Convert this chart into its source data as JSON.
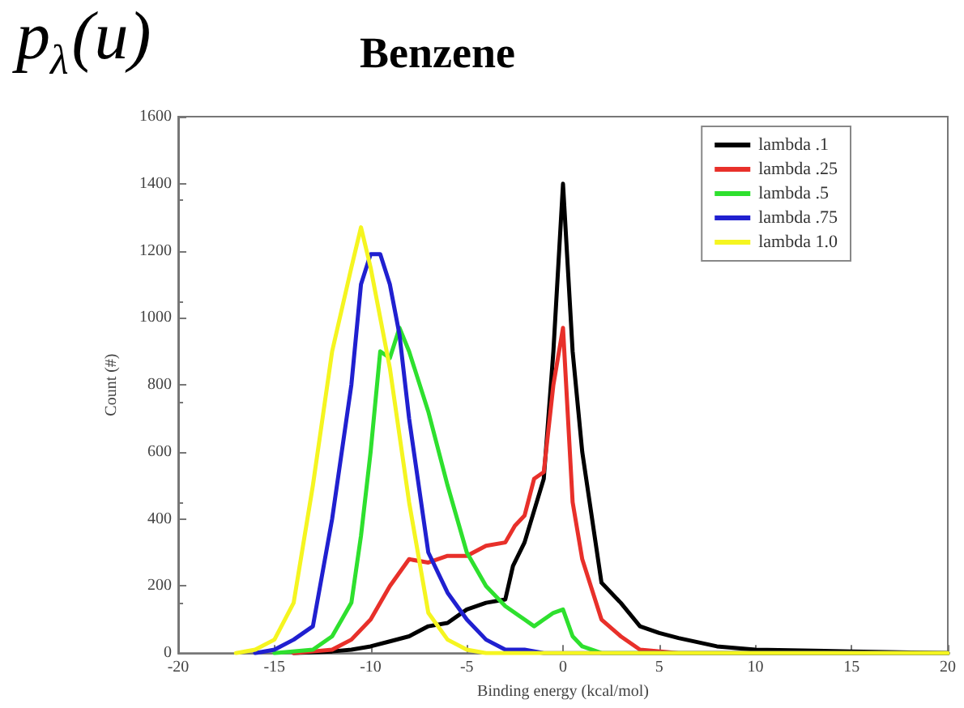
{
  "chart_data": {
    "type": "line",
    "title": "Benzene",
    "xlabel": "Binding energy (kcal/mol)",
    "ylabel": "Count (#)",
    "annotations": [
      "p$_{λ}$(u)"
    ],
    "xlim": [
      -20,
      20
    ],
    "xticks": [
      -20,
      -15,
      -10,
      -5,
      0,
      5,
      10,
      15,
      20
    ],
    "ylim": [
      0,
      1600
    ],
    "yticks": [
      0,
      200,
      400,
      600,
      800,
      1000,
      1200,
      1400,
      1600
    ],
    "grid": false,
    "legend": "top right",
    "marker": "none",
    "line_style": "solid",
    "series": [
      {
        "name": "lambda .1",
        "color": "#000000",
        "x": [
          -14,
          -12,
          -11,
          -10,
          -9,
          -8,
          -7,
          -6,
          -5,
          -4,
          -3,
          -2.6,
          -2,
          -1,
          -0.5,
          0,
          0.5,
          1,
          2,
          3,
          4,
          5,
          6,
          8,
          10,
          15,
          20
        ],
        "values": [
          0,
          5,
          10,
          20,
          35,
          50,
          80,
          90,
          130,
          150,
          160,
          260,
          330,
          520,
          900,
          1400,
          900,
          600,
          210,
          150,
          80,
          60,
          45,
          20,
          10,
          5,
          0
        ]
      },
      {
        "name": "lambda .25",
        "color": "#e8302a",
        "x": [
          -14,
          -13,
          -12,
          -11,
          -10,
          -9,
          -8,
          -7,
          -6,
          -5,
          -4,
          -3,
          -2.5,
          -2,
          -1.5,
          -1,
          -0.5,
          0,
          0.5,
          1,
          2,
          3,
          4,
          6,
          20
        ],
        "values": [
          0,
          5,
          10,
          40,
          100,
          200,
          280,
          270,
          290,
          290,
          320,
          330,
          380,
          410,
          520,
          540,
          800,
          970,
          450,
          280,
          100,
          50,
          10,
          0,
          0
        ]
      },
      {
        "name": "lambda .5",
        "color": "#2ee02e",
        "x": [
          -15,
          -13,
          -12,
          -11,
          -10.5,
          -10,
          -9.5,
          -9,
          -8.5,
          -8,
          -7,
          -6,
          -5,
          -4,
          -3,
          -2,
          -1.5,
          -1,
          -0.5,
          0,
          0.5,
          1,
          2,
          20
        ],
        "values": [
          0,
          10,
          50,
          150,
          350,
          600,
          900,
          880,
          970,
          900,
          720,
          500,
          300,
          200,
          140,
          100,
          80,
          100,
          120,
          130,
          50,
          20,
          0,
          0
        ]
      },
      {
        "name": "lambda .75",
        "color": "#2020d0",
        "x": [
          -16,
          -15,
          -14,
          -13.5,
          -13,
          -12,
          -11,
          -10.5,
          -10,
          -9.5,
          -9,
          -8.5,
          -8,
          -7,
          -6,
          -5,
          -4,
          -3,
          -2,
          -1,
          20
        ],
        "values": [
          0,
          10,
          40,
          60,
          80,
          400,
          800,
          1100,
          1190,
          1190,
          1100,
          950,
          700,
          300,
          180,
          100,
          40,
          10,
          10,
          0,
          0
        ]
      },
      {
        "name": "lambda 1.0",
        "color": "#f5f520",
        "x": [
          -17,
          -16,
          -15,
          -14,
          -13,
          -12,
          -11,
          -10.5,
          -10,
          -9,
          -8,
          -7,
          -6,
          -5,
          -4,
          20
        ],
        "values": [
          0,
          10,
          40,
          150,
          500,
          900,
          1150,
          1270,
          1150,
          850,
          450,
          120,
          40,
          10,
          0,
          0
        ]
      }
    ]
  }
}
